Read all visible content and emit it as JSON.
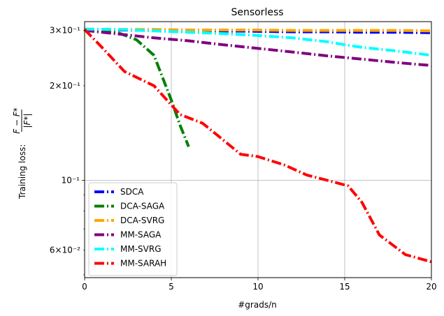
{
  "chart_data": {
    "type": "line",
    "title": "Sensorless",
    "xlabel": "#grads/n",
    "ylabel_prefix": "Training loss: ",
    "ylabel_numerator": "F − F*",
    "ylabel_denominator": "|F*|",
    "xlim": [
      0,
      20
    ],
    "ylim": [
      0.049,
      0.32
    ],
    "yscale": "log",
    "grid": true,
    "legend_position": "lower-left",
    "x_ticks": [
      {
        "value": 0,
        "label": "0"
      },
      {
        "value": 5,
        "label": "5"
      },
      {
        "value": 10,
        "label": "10"
      },
      {
        "value": 15,
        "label": "15"
      },
      {
        "value": 20,
        "label": "20"
      }
    ],
    "y_major_ticks": [
      {
        "value": 0.1,
        "label": "10⁻¹"
      }
    ],
    "y_minor_ticks": [
      {
        "value": 0.06,
        "label": "6×10⁻²"
      },
      {
        "value": 0.2,
        "label": "2×10⁻¹"
      },
      {
        "value": 0.3,
        "label": "3×10⁻¹"
      }
    ],
    "y_minor_unlabeled": [
      0.05,
      0.07,
      0.08,
      0.09
    ],
    "series": [
      {
        "name": "SDCA",
        "color": "#0000ff",
        "x": [
          0,
          2,
          4,
          6,
          8,
          10,
          12,
          14,
          16,
          18,
          20
        ],
        "y": [
          0.302,
          0.301,
          0.3,
          0.3,
          0.299,
          0.298,
          0.297,
          0.297,
          0.296,
          0.296,
          0.295
        ]
      },
      {
        "name": "DCA-SAGA",
        "color": "#008000",
        "x": [
          0,
          1,
          2,
          3,
          4,
          5,
          5.5,
          6
        ],
        "y": [
          0.302,
          0.299,
          0.294,
          0.28,
          0.25,
          0.18,
          0.15,
          0.128
        ]
      },
      {
        "name": "DCA-SVRG",
        "color": "#ffa500",
        "x": [
          0,
          2,
          4,
          6,
          8,
          10,
          12,
          14,
          16,
          18,
          20
        ],
        "y": [
          0.303,
          0.302,
          0.302,
          0.301,
          0.301,
          0.301,
          0.3,
          0.3,
          0.3,
          0.3,
          0.299
        ]
      },
      {
        "name": "MM-SAGA",
        "color": "#800080",
        "x": [
          0,
          2,
          4,
          6,
          8,
          10,
          12,
          14,
          16,
          18,
          20
        ],
        "y": [
          0.3,
          0.292,
          0.284,
          0.278,
          0.27,
          0.263,
          0.256,
          0.249,
          0.243,
          0.237,
          0.232
        ]
      },
      {
        "name": "MM-SVRG",
        "color": "#00ffff",
        "x": [
          0,
          2,
          4,
          6,
          8,
          10,
          12,
          14,
          15,
          16,
          18,
          20
        ],
        "y": [
          0.303,
          0.302,
          0.299,
          0.296,
          0.293,
          0.289,
          0.284,
          0.276,
          0.27,
          0.265,
          0.258,
          0.25
        ]
      },
      {
        "name": "MM-SARAH",
        "color": "#ff0000",
        "x": [
          0,
          1,
          2.3,
          4,
          5.5,
          6.8,
          7.6,
          9,
          10,
          11.5,
          12.8,
          14,
          15.2,
          16,
          17,
          18.5,
          20
        ],
        "y": [
          0.302,
          0.265,
          0.222,
          0.2,
          0.162,
          0.152,
          0.14,
          0.121,
          0.119,
          0.112,
          0.104,
          0.1,
          0.096,
          0.085,
          0.067,
          0.058,
          0.055
        ]
      }
    ]
  }
}
